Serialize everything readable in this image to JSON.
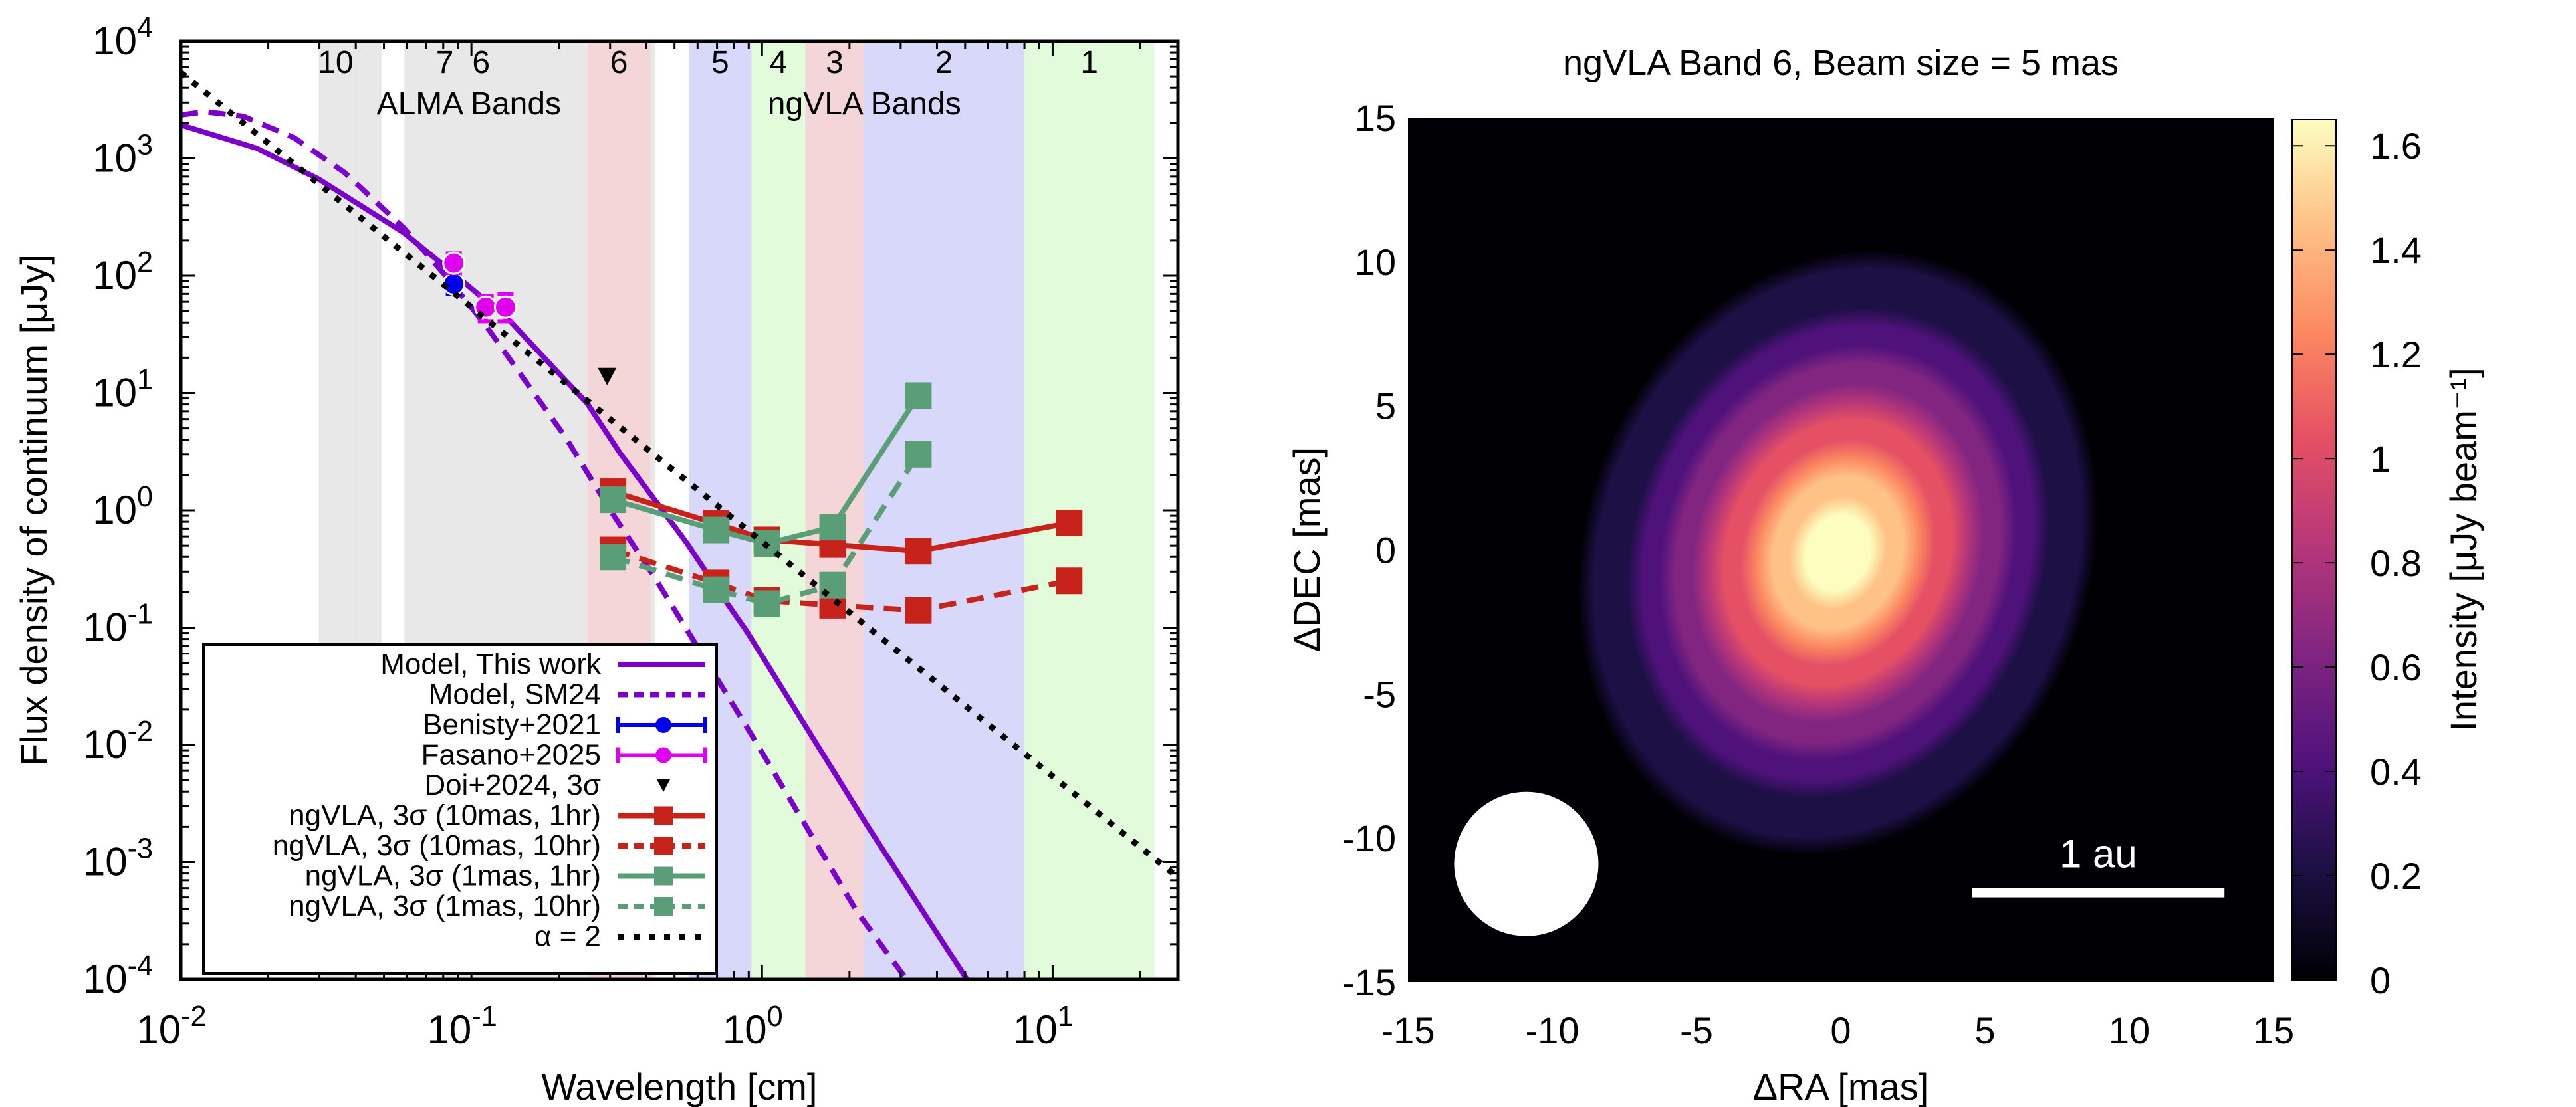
{
  "figure": {
    "left_panel": {
      "xlabel": "Wavelength [cm]",
      "ylabel": "Flux density of continuum [μJy]",
      "band_groups": [
        {
          "name": "ALMA Bands",
          "label_at_cm": 0.098
        },
        {
          "name": "ngVLA Bands",
          "label_at_cm": 2.25
        }
      ]
    },
    "right_panel": {
      "title": "ngVLA Band 6, Beam size = 5 mas",
      "xlabel": "ΔRA [mas]",
      "ylabel": "ΔDEC [mas]",
      "colorbar_label": "Intensity [μJy beam⁻¹]",
      "scale_bar_label": "1 au"
    }
  },
  "chart_data": [
    {
      "type": "line",
      "title": "",
      "xlabel": "Wavelength [cm]",
      "ylabel": "Flux density of continuum [μJy]",
      "xscale": "log",
      "yscale": "log",
      "xlim": [
        0.01,
        27
      ],
      "ylim": [
        0.0001,
        10000
      ],
      "grid": false,
      "legend_position": "bottom-left",
      "xticks": [
        {
          "value": 0.01,
          "base": "10",
          "exp": "-2"
        },
        {
          "value": 0.1,
          "base": "10",
          "exp": "-1"
        },
        {
          "value": 1,
          "base": "10",
          "exp": "0"
        },
        {
          "value": 10,
          "base": "10",
          "exp": "1"
        }
      ],
      "yticks": [
        {
          "value": 0.0001,
          "base": "10",
          "exp": "-4"
        },
        {
          "value": 0.001,
          "base": "10",
          "exp": "-3"
        },
        {
          "value": 0.01,
          "base": "10",
          "exp": "-2"
        },
        {
          "value": 0.1,
          "base": "10",
          "exp": "-1"
        },
        {
          "value": 1,
          "base": "10",
          "exp": "0"
        },
        {
          "value": 10,
          "base": "10",
          "exp": "1"
        },
        {
          "value": 100,
          "base": "10",
          "exp": "2"
        },
        {
          "value": 1000,
          "base": "10",
          "exp": "3"
        },
        {
          "value": 10000,
          "base": "10",
          "exp": "4"
        }
      ],
      "bands": [
        {
          "group": "ALMA",
          "label": "10",
          "range_cm": [
            0.0298,
            0.039
          ],
          "color": "#e8e8e8"
        },
        {
          "group": "ALMA",
          "label": "",
          "range_cm": [
            0.039,
            0.049
          ],
          "color": "#e8e8e8"
        },
        {
          "group": "ALMA",
          "label": "7",
          "range_cm": [
            0.0588,
            0.0745
          ],
          "color": "#e8e8e8"
        },
        {
          "group": "ALMA",
          "label": "",
          "range_cm": [
            0.0745,
            0.43
          ],
          "color": "#e8e8e8"
        },
        {
          "group": "ALMA",
          "label_pair": [
            "7",
            "6"
          ],
          "label_at_cm": [
            0.081,
            0.108
          ]
        },
        {
          "group": "ngVLA",
          "label": "6",
          "range_cm": [
            0.251,
            0.413
          ],
          "color": "#f5d6d8"
        },
        {
          "group": "ngVLA",
          "label": "5",
          "range_cm": [
            0.56,
            0.92
          ],
          "color": "#d8d8fa"
        },
        {
          "group": "ngVLA",
          "label": "4",
          "range_cm": [
            0.92,
            1.41
          ],
          "color": "#e2fbdb"
        },
        {
          "group": "ngVLA",
          "label": "3",
          "range_cm": [
            1.41,
            2.24
          ],
          "color": "#f5d6d8"
        },
        {
          "group": "ngVLA",
          "label": "2",
          "range_cm": [
            2.24,
            7.98
          ],
          "color": "#d8d8fa"
        },
        {
          "group": "ngVLA",
          "label": "1",
          "range_cm": [
            7.98,
            22.4
          ],
          "color": "#e2fbdb"
        }
      ],
      "series": [
        {
          "name": "Model, This work",
          "style": "solid",
          "color": "#7b00cc",
          "marker": "none",
          "x": [
            0.01,
            0.0182,
            0.0299,
            0.0585,
            0.0822,
            0.136,
            0.195,
            0.25,
            0.326,
            0.424,
            0.551,
            0.718,
            0.886,
            2.3,
            5.07
          ],
          "y": [
            1930,
            1225,
            664,
            233,
            117,
            41,
            15.7,
            8.2,
            3.03,
            1.26,
            0.527,
            0.196,
            0.093,
            0.00206,
            0.0001
          ]
        },
        {
          "name": "Model, SM24",
          "style": "dashed",
          "color": "#7b00cc",
          "marker": "none",
          "x": [
            0.01,
            0.0121,
            0.0164,
            0.0245,
            0.0367,
            0.0585,
            0.0822,
            0.111,
            0.142,
            0.21,
            0.3,
            0.424,
            0.543,
            0.906,
            2.12,
            3.14
          ],
          "y": [
            2350,
            2505,
            2290,
            1507,
            755,
            256,
            97.5,
            39,
            16.5,
            4.26,
            1.01,
            0.275,
            0.102,
            0.013,
            0.00038,
            0.0001
          ]
        },
        {
          "name": "Benisty+2021",
          "style": "errorbar",
          "color": "#0000ee",
          "marker": "circle",
          "x": [
            0.087
          ],
          "y": [
            85
          ],
          "yerr_low": [
            70
          ],
          "yerr_high": [
            100
          ]
        },
        {
          "name": "Fasano+2025",
          "style": "errorbar",
          "color": "#e000f0",
          "marker": "circle",
          "x": [
            0.087,
            0.112,
            0.131
          ],
          "y": [
            128,
            54,
            54
          ],
          "yerr_low": [
            105,
            41,
            41
          ],
          "yerr_high": [
            155,
            67,
            70
          ]
        },
        {
          "name": "Doi+2024, 3σ",
          "style": "upper-limit",
          "color": "#000000",
          "marker": "triangle-down",
          "x": [
            0.293
          ],
          "y": [
            14
          ]
        },
        {
          "name": "ngVLA, 3σ (10mas, 1hr)",
          "style": "solid",
          "color": "#c8231a",
          "marker": "square",
          "x": [
            0.307,
            0.695,
            1.04,
            1.75,
            3.45,
            11.4
          ],
          "y": [
            1.44,
            0.77,
            0.56,
            0.51,
            0.45,
            0.78
          ]
        },
        {
          "name": "ngVLA, 3σ (10mas, 10hr)",
          "style": "dashed",
          "color": "#c8231a",
          "marker": "square",
          "x": [
            0.307,
            0.695,
            1.04,
            1.75,
            3.45,
            11.4
          ],
          "y": [
            0.46,
            0.24,
            0.17,
            0.155,
            0.14,
            0.25
          ]
        },
        {
          "name": "ngVLA, 3σ (1mas, 1hr)",
          "style": "solid",
          "color": "#5a9e78",
          "marker": "square",
          "x": [
            0.307,
            0.695,
            1.04,
            1.75,
            3.45
          ],
          "y": [
            1.23,
            0.68,
            0.52,
            0.72,
            9.5
          ]
        },
        {
          "name": "ngVLA, 3σ (1mas, 10hr)",
          "style": "dashed",
          "color": "#5a9e78",
          "marker": "square",
          "x": [
            0.307,
            0.695,
            1.04,
            1.75,
            3.45
          ],
          "y": [
            0.4,
            0.21,
            0.16,
            0.23,
            3.0
          ]
        },
        {
          "name": "α = 2",
          "style": "dotted",
          "color": "#000000",
          "marker": "none",
          "x": [
            0.01,
            27
          ],
          "y": [
            5400,
            0.00074
          ]
        }
      ]
    },
    {
      "type": "heatmap",
      "title": "ngVLA Band 6, Beam size = 5 mas",
      "xlabel": "ΔRA [mas]",
      "ylabel": "ΔDEC [mas]",
      "xlim": [
        -15,
        15
      ],
      "ylim": [
        -15,
        15
      ],
      "xticks": [
        -15,
        -10,
        -5,
        0,
        5,
        10,
        15
      ],
      "yticks": [
        -15,
        -10,
        -5,
        0,
        5,
        10,
        15
      ],
      "colormap": "magma",
      "colorbar": {
        "label": "Intensity [μJy beam⁻¹]",
        "range": [
          0,
          1.65
        ],
        "ticks": [
          0,
          0.2,
          0.4,
          0.6,
          0.8,
          1,
          1.2,
          1.4,
          1.6
        ],
        "tick_labels": [
          "0",
          "0.2",
          "0.4",
          "0.6",
          "0.8",
          "1",
          "1.2",
          "1.4",
          "1.6"
        ]
      },
      "source": {
        "peak": 1.65,
        "center_mas": [
          -0.1,
          -0.1
        ],
        "fwhm_major_mas": 10.5,
        "fwhm_minor_mas": 8.6,
        "position_angle_deg": 20
      },
      "beam": {
        "diameter_mas": 5,
        "center_mas": [
          -10.9,
          -10.9
        ],
        "color": "#ffffff"
      },
      "scale_bar": {
        "label": "1 au",
        "length_mas": 8.75,
        "start_mas": [
          4.55,
          -11.9
        ]
      }
    }
  ]
}
